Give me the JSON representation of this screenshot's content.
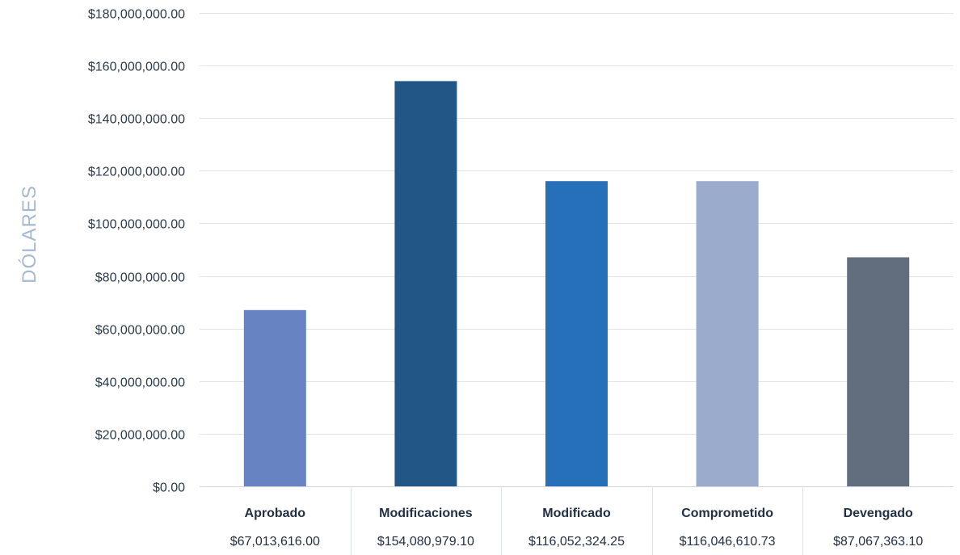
{
  "chart_data": {
    "type": "bar",
    "title": "",
    "xlabel": "",
    "ylabel": "DÓLARES",
    "ylim": [
      0,
      180000000
    ],
    "y_ticks": [
      0,
      20000000,
      40000000,
      60000000,
      80000000,
      100000000,
      120000000,
      140000000,
      160000000,
      180000000
    ],
    "y_tick_labels": [
      "$0.00",
      "$20,000,000.00",
      "$40,000,000.00",
      "$60,000,000.00",
      "$80,000,000.00",
      "$100,000,000.00",
      "$120,000,000.00",
      "$140,000,000.00",
      "$160,000,000.00",
      "$180,000,000.00"
    ],
    "grid": true,
    "categories": [
      "Aprobado",
      "Modificaciones",
      "Modificado",
      "Comprometido",
      "Devengado"
    ],
    "values": [
      67013616.0,
      154080979.1,
      116052324.25,
      116046610.73,
      87067363.1
    ],
    "value_labels": [
      "$67,013,616.00",
      "$154,080,979.10",
      "$116,052,324.25",
      "$116,046,610.73",
      "$87,067,363.10"
    ],
    "colors": [
      "#6783c2",
      "#215686",
      "#2670ba",
      "#9aabcc",
      "#626d7e"
    ],
    "grid_color": "#dfe3ec",
    "axis_color": "#cfd5df"
  }
}
